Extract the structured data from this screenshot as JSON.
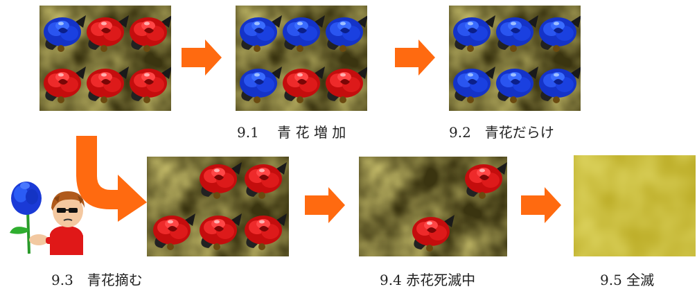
{
  "captions": {
    "c91": "9.1　 青 花 増 加",
    "c92": "9.2　青花だらけ",
    "c93": "9.3　青花摘む",
    "c94": "9.4 赤花死滅中",
    "c95": "9.5 全滅"
  },
  "colors": {
    "arrow": "#ff6a10",
    "blue_rose": "#1f3fd8",
    "red_rose": "#e01818",
    "background_moss": "#9a8a2a",
    "background_yellow": "#d8cc40"
  },
  "icons": {
    "rose_blue": "blue-rose-icon",
    "rose_red": "red-rose-icon",
    "person": "person-with-sunglasses-icon"
  }
}
